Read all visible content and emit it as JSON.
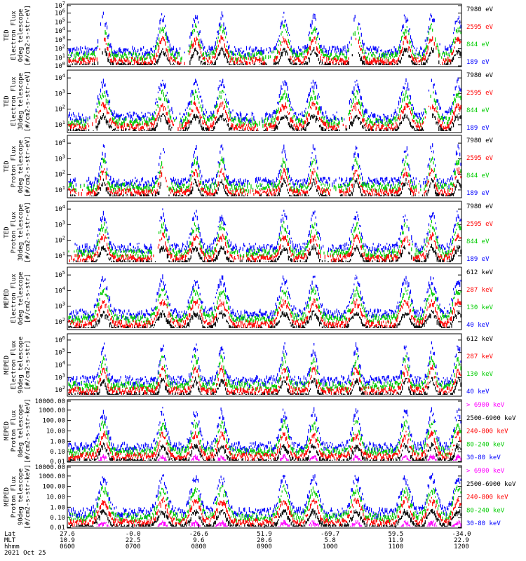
{
  "chart_data": {
    "type": "line",
    "panels": [
      {
        "ylabel": [
          "TED",
          "Electron Flux",
          "0deg telescope",
          "[#/cm2-s-str-eV]"
        ],
        "scale": "log",
        "ylim": [
          1,
          10000000
        ],
        "ticks": [
          "10^0",
          "10^1",
          "10^2",
          "10^3",
          "10^4",
          "10^5",
          "10^6",
          "10^7"
        ],
        "legend": [
          {
            "name": "7980 eV",
            "color": "#000000"
          },
          {
            "name": "2595 eV",
            "color": "#ff0000"
          },
          {
            "name": "844 eV",
            "color": "#00cc00"
          },
          {
            "name": "189 eV",
            "color": "#0000ff"
          }
        ]
      },
      {
        "ylabel": [
          "TED",
          "Electron Flux",
          "30deg telescope",
          "[#/cm2-s-str-eV]"
        ],
        "scale": "log",
        "ylim": [
          1,
          10000
        ],
        "ticks": [
          "10^1",
          "10^2",
          "10^3",
          "10^4"
        ],
        "legend": [
          {
            "name": "7980 eV",
            "color": "#000000"
          },
          {
            "name": "2595 eV",
            "color": "#ff0000"
          },
          {
            "name": "844 eV",
            "color": "#00cc00"
          },
          {
            "name": "189 eV",
            "color": "#0000ff"
          }
        ]
      },
      {
        "ylabel": [
          "TED",
          "Proton Flux",
          "0deg telescope",
          "[#/cm2-s-str-eV]"
        ],
        "scale": "log",
        "ylim": [
          1,
          10000
        ],
        "ticks": [
          "10^1",
          "10^2",
          "10^3",
          "10^4"
        ],
        "legend": [
          {
            "name": "7980 eV",
            "color": "#000000"
          },
          {
            "name": "2595 eV",
            "color": "#ff0000"
          },
          {
            "name": "844 eV",
            "color": "#00cc00"
          },
          {
            "name": "189 eV",
            "color": "#0000ff"
          }
        ]
      },
      {
        "ylabel": [
          "TED",
          "Proton Flux",
          "30deg telescope",
          "[#/cm2-s-str-eV]"
        ],
        "scale": "log",
        "ylim": [
          1,
          10000
        ],
        "ticks": [
          "10^1",
          "10^2",
          "10^3",
          "10^4"
        ],
        "legend": [
          {
            "name": "7980 eV",
            "color": "#000000"
          },
          {
            "name": "2595 eV",
            "color": "#ff0000"
          },
          {
            "name": "844 eV",
            "color": "#00cc00"
          },
          {
            "name": "189 eV",
            "color": "#0000ff"
          }
        ]
      },
      {
        "ylabel": [
          "MEPED",
          "Electron Flux",
          "0deg telescope",
          "[#/cm2-s-str]"
        ],
        "scale": "log",
        "ylim": [
          100,
          100000
        ],
        "ticks": [
          "10^2",
          "10^3",
          "10^4",
          "10^5"
        ],
        "legend": [
          {
            "name": "612 keV",
            "color": "#000000"
          },
          {
            "name": "287 keV",
            "color": "#ff0000"
          },
          {
            "name": "130 keV",
            "color": "#00cc00"
          },
          {
            "name": "40 keV",
            "color": "#0000ff"
          }
        ]
      },
      {
        "ylabel": [
          "MEPED",
          "Electron Flux",
          "90deg telescope",
          "[#/cm2-s-str]"
        ],
        "scale": "log",
        "ylim": [
          100,
          1000000
        ],
        "ticks": [
          "10^2",
          "10^3",
          "10^4",
          "10^5",
          "10^6"
        ],
        "legend": [
          {
            "name": "612 keV",
            "color": "#000000"
          },
          {
            "name": "287 keV",
            "color": "#ff0000"
          },
          {
            "name": "130 keV",
            "color": "#00cc00"
          },
          {
            "name": "40 keV",
            "color": "#0000ff"
          }
        ]
      },
      {
        "ylabel": [
          "MEPED",
          "Proton Flux",
          "0deg telescope",
          "[#/cm2-s-str-keV]"
        ],
        "scale": "log",
        "ylim": [
          0.01,
          10000
        ],
        "ticks": [
          "0.01",
          "0.10",
          "1.00",
          "10.00",
          "100.00",
          "1000.00",
          "10000.00"
        ],
        "legend": [
          {
            "name": "> 6900 keV",
            "color": "#ff00ff"
          },
          {
            "name": "2500-6900 keV",
            "color": "#000000"
          },
          {
            "name": "240-800 keV",
            "color": "#ff0000"
          },
          {
            "name": "80-240 keV",
            "color": "#00cc00"
          },
          {
            "name": "30-80 keV",
            "color": "#0000ff"
          }
        ]
      },
      {
        "ylabel": [
          "MEPED",
          "Proton Flux",
          "90deg telescope",
          "[#/cm2-s-str-keV]"
        ],
        "scale": "log",
        "ylim": [
          0.01,
          10000
        ],
        "ticks": [
          "0.01",
          "0.10",
          "1.00",
          "10.00",
          "100.00",
          "1000.00",
          "10000.00"
        ],
        "legend": [
          {
            "name": "> 6900 keV",
            "color": "#ff00ff"
          },
          {
            "name": "2500-6900 keV",
            "color": "#000000"
          },
          {
            "name": "240-800 keV",
            "color": "#ff0000"
          },
          {
            "name": "80-240 keV",
            "color": "#00cc00"
          },
          {
            "name": "30-80 keV",
            "color": "#0000ff"
          }
        ]
      }
    ],
    "x_axis": {
      "row_labels": [
        "Lat",
        "MLT",
        "hhmm"
      ],
      "ticks": [
        {
          "lat": "27.6",
          "mlt": "10.9",
          "hhmm": "0600"
        },
        {
          "lat": "-0.0",
          "mlt": "22.5",
          "hhmm": "0700"
        },
        {
          "lat": "-26.6",
          "mlt": "9.6",
          "hhmm": "0800"
        },
        {
          "lat": "51.9",
          "mlt": "20.6",
          "hhmm": "0900"
        },
        {
          "lat": "-69.7",
          "mlt": "5.8",
          "hhmm": "1000"
        },
        {
          "lat": "59.5",
          "mlt": "11.9",
          "hhmm": "1100"
        },
        {
          "lat": "-34.0",
          "mlt": "22.9",
          "hhmm": "1200"
        }
      ],
      "date": "2021 Oct 25",
      "range_hours": [
        6,
        12
      ]
    },
    "bursts_hours": [
      6.55,
      7.45,
      7.95,
      8.35,
      9.3,
      9.75,
      10.4,
      11.15,
      11.55,
      11.95
    ]
  }
}
